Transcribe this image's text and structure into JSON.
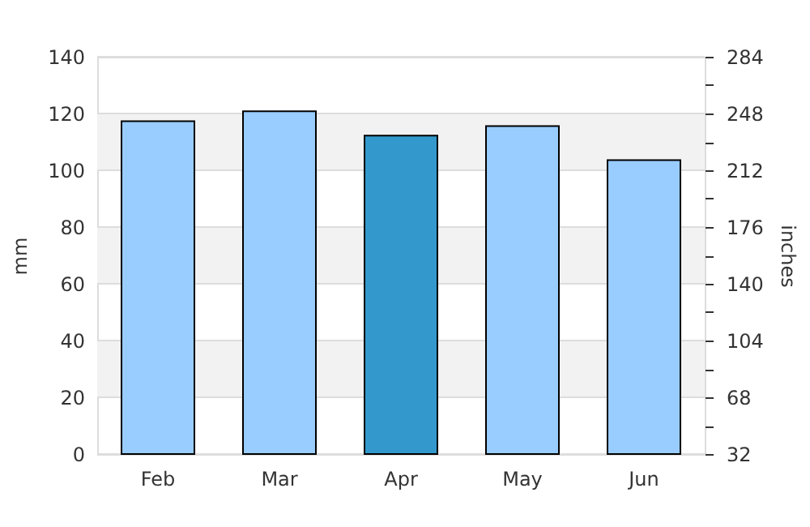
{
  "chart_data": {
    "type": "bar",
    "ylabel": "mm",
    "y2label": "inches",
    "categories": [
      "Feb",
      "Mar",
      "Apr",
      "May",
      "Jun"
    ],
    "values": [
      117.3,
      120.8,
      112.2,
      115.6,
      103.6
    ],
    "colors": [
      "#99ccff",
      "#99ccff",
      "#3399cc",
      "#99ccff",
      "#99ccff"
    ],
    "ylim": [
      0,
      140
    ],
    "yticks": [
      0,
      20,
      40,
      60,
      80,
      100,
      120,
      140
    ],
    "y2lim": [
      32,
      284
    ],
    "y2ticks": [
      32,
      {
        "value": 50,
        "label": null
      },
      68,
      {
        "value": 86,
        "label": null
      },
      104,
      {
        "value": 122,
        "label": null
      },
      140,
      {
        "value": 158,
        "label": null
      },
      176,
      {
        "value": 194,
        "label": null
      },
      212,
      {
        "value": 230,
        "label": null
      },
      248,
      {
        "value": 266,
        "label": null
      },
      284
    ],
    "bands": [
      {
        "axis": "y",
        "from": 20,
        "to": 40,
        "color": "#f2f2f2"
      },
      {
        "axis": "y",
        "from": 60,
        "to": 80,
        "color": "#f2f2f2"
      },
      {
        "axis": "y",
        "from": 100,
        "to": 120,
        "color": "#f2f2f2"
      }
    ],
    "grid": "y"
  }
}
